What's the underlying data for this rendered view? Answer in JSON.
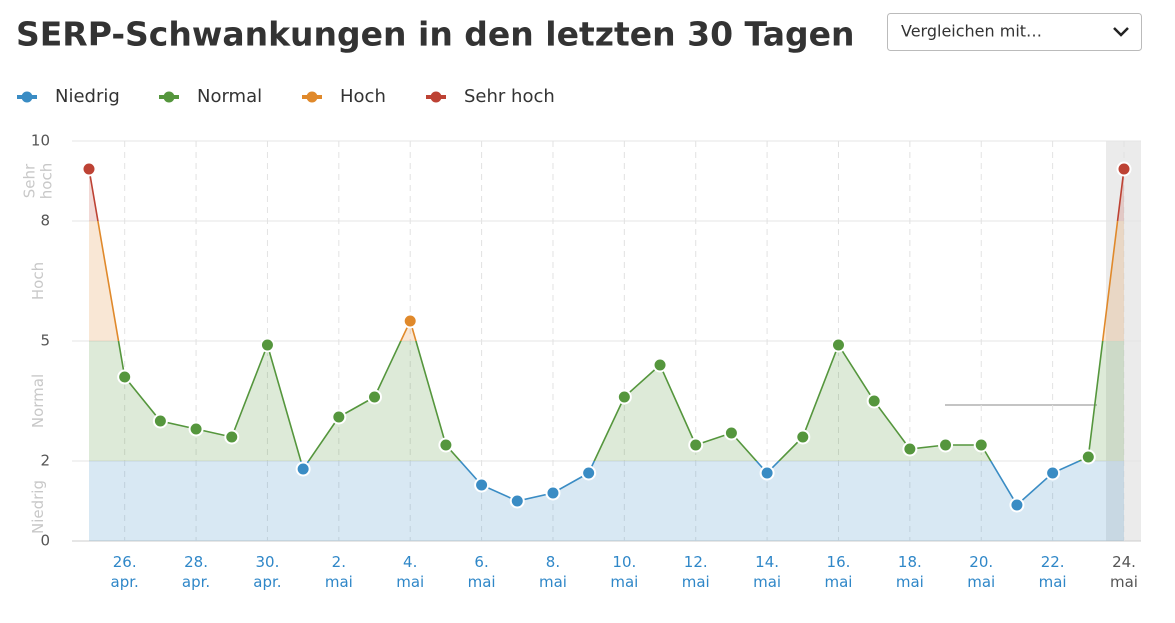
{
  "compare_label": "Vergleichen mit…",
  "chart_data": {
    "type": "line",
    "title": "SERP-Schwankungen in den letzten 30 Tagen",
    "bands": [
      {
        "name": "Niedrig",
        "color": "#3a8cc4",
        "range": [
          0,
          2
        ]
      },
      {
        "name": "Normal",
        "color": "#55963d",
        "range": [
          2,
          5
        ]
      },
      {
        "name": "Hoch",
        "color": "#e0892b",
        "range": [
          5,
          8
        ]
      },
      {
        "name": "Sehr hoch",
        "color": "#bd4234",
        "range": [
          8,
          10
        ]
      }
    ],
    "categories": [
      null,
      "26. apr.",
      null,
      "28. apr.",
      null,
      "30. apr.",
      null,
      "2. mai",
      null,
      "4. mai",
      null,
      "6. mai",
      null,
      "8. mai",
      null,
      "10. mai",
      null,
      "12. mai",
      null,
      "14. mai",
      null,
      "16. mai",
      null,
      "18. mai",
      null,
      "20. mai",
      null,
      "22. mai",
      null,
      "24. mai"
    ],
    "values": [
      9.3,
      4.1,
      3.0,
      2.8,
      2.6,
      4.9,
      1.8,
      3.1,
      3.6,
      5.5,
      2.4,
      1.4,
      1.0,
      1.2,
      1.7,
      3.6,
      4.4,
      2.4,
      2.7,
      1.7,
      2.6,
      4.9,
      3.5,
      2.3,
      2.4,
      2.4,
      0.9,
      1.7,
      2.1,
      9.3
    ],
    "ylim": [
      0,
      10
    ],
    "yticks": [
      0,
      2,
      5,
      8,
      10
    ],
    "grid": true
  }
}
